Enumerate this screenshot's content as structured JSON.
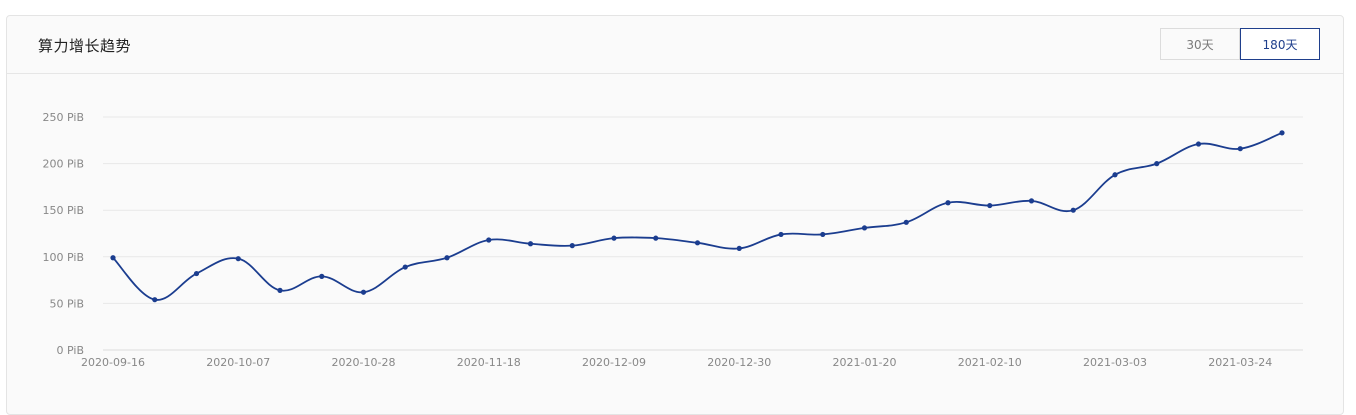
{
  "header": {
    "title": "算力增长趋势",
    "range_buttons": [
      {
        "label": "30天",
        "active": false
      },
      {
        "label": "180天",
        "active": true
      }
    ]
  },
  "colors": {
    "line": "#1b3d8f",
    "grid": "#e8e8e8",
    "axis_text": "#888888",
    "active_border": "#1f3f8c"
  },
  "chart_data": {
    "type": "line",
    "yunit": "PiB",
    "ylim": [
      0,
      250
    ],
    "yticks": [
      0,
      50,
      100,
      150,
      200,
      250
    ],
    "ytick_labels": [
      "0 PiB",
      "50 PiB",
      "100 PiB",
      "150 PiB",
      "200 PiB",
      "250 PiB"
    ],
    "xtick_labels": [
      "2020-09-16",
      "2020-10-07",
      "2020-10-28",
      "2020-11-18",
      "2020-12-09",
      "2020-12-30",
      "2021-01-20",
      "2021-02-10",
      "2021-03-03",
      "2021-03-24"
    ],
    "grid": true,
    "series": [
      {
        "x": [
          "2020-09-16",
          "2020-09-23",
          "2020-09-30",
          "2020-10-07",
          "2020-10-14",
          "2020-10-21",
          "2020-10-28",
          "2020-11-04",
          "2020-11-11",
          "2020-11-18",
          "2020-11-25",
          "2020-12-02",
          "2020-12-09",
          "2020-12-16",
          "2020-12-23",
          "2020-12-30",
          "2021-01-06",
          "2021-01-13",
          "2021-01-20",
          "2021-01-27",
          "2021-02-03",
          "2021-02-10",
          "2021-02-17",
          "2021-02-24",
          "2021-03-03",
          "2021-03-10",
          "2021-03-17",
          "2021-03-24",
          "2021-03-31"
        ],
        "values": [
          99,
          54,
          82,
          98,
          64,
          79,
          62,
          89,
          99,
          118,
          114,
          112,
          120,
          120,
          115,
          109,
          124,
          124,
          131,
          137,
          158,
          155,
          160,
          150,
          188,
          200,
          221,
          216,
          233
        ]
      }
    ]
  }
}
